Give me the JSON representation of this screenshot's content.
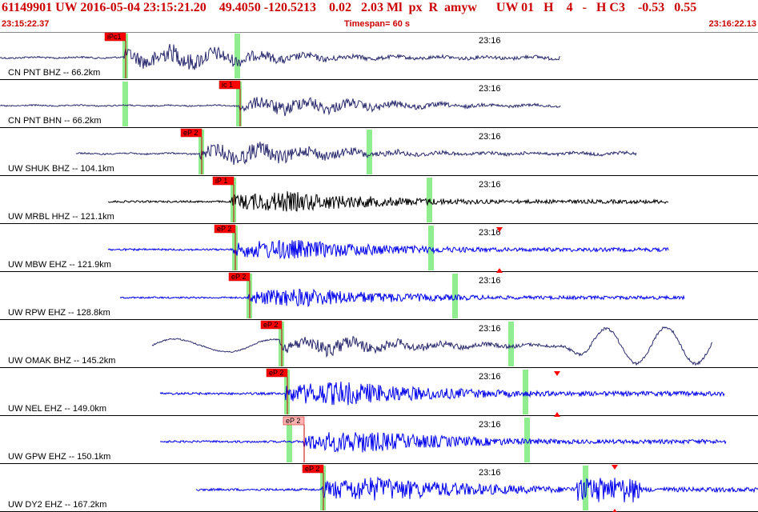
{
  "header": {
    "event_line": "61149901 UW 2016-05-04 23:15:21.20    49.4050 -120.5213    0.02   2.03 Ml  px  R  amyw      UW 01   H    4   -   H C3    -0.53   0.55",
    "start_time": "23:15:22.37",
    "timespan": "Timespan=  60 s",
    "end_time": "23:16:22.13"
  },
  "colors": {
    "header_text": "#cc0000",
    "pick_flag": "#ff0000",
    "pick_flag_pale": "#ffb0b0",
    "pick_line": "#cc0000",
    "window_marker": "#90ee90",
    "divider": "#000000"
  },
  "minute_label": "23:16",
  "channels": [
    {
      "label": "CN PNT BHZ -- 66.2km",
      "pick": "iPc1",
      "color": "#2a2a6e",
      "style": "long"
    },
    {
      "label": "CN PNT BHN -- 66.2km",
      "pick": "ic 1",
      "color": "#2a2a6e",
      "style": "long"
    },
    {
      "label": "UW SHUK BHZ -- 104.1km",
      "pick": "eP 2",
      "color": "#2a2a6e",
      "style": "long"
    },
    {
      "label": "UW MRBL HHZ -- 121.1km",
      "pick": "iP 1",
      "color": "#000000",
      "style": "short"
    },
    {
      "label": "UW MBW EHZ -- 121.9km",
      "pick": "eP 2",
      "color": "#0000ee",
      "style": "short"
    },
    {
      "label": "UW RPW EHZ -- 128.8km",
      "pick": "eP 2",
      "color": "#0000ee",
      "style": "short"
    },
    {
      "label": "UW OMAK BHZ -- 145.2km",
      "pick": "eP 2",
      "color": "#2a2a6e",
      "style": "long"
    },
    {
      "label": "UW NEL EHZ -- 149.0km",
      "pick": "eP 2",
      "color": "#0000ee",
      "style": "short"
    },
    {
      "label": "UW GPW EHZ -- 150.1km",
      "pick": "eP 2",
      "color": "#0000ee",
      "style": "short"
    },
    {
      "label": "UW DY2 EHZ -- 167.2km",
      "pick": "eP 2",
      "color": "#0000ee",
      "style": "short"
    }
  ]
}
